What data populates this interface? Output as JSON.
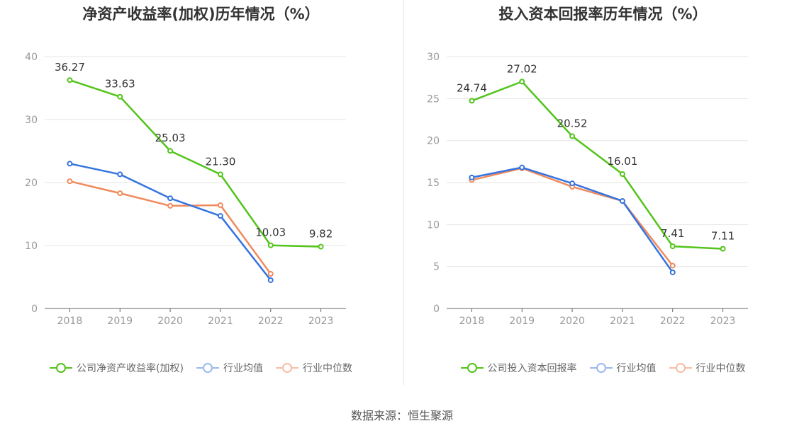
{
  "chart_data": [
    {
      "type": "line",
      "title": "净资产收益率(加权)历年情况（%）",
      "categories": [
        "2018",
        "2019",
        "2020",
        "2021",
        "2022",
        "2023"
      ],
      "ylim": [
        0,
        40
      ],
      "yticks": [
        "0",
        "10",
        "20",
        "30",
        "40"
      ],
      "grid": true,
      "legend_position": "bottom",
      "series": [
        {
          "name": "公司净资产收益率(加权)",
          "color": "#52c41a",
          "values": [
            36.27,
            33.63,
            25.03,
            21.3,
            10.03,
            9.82
          ],
          "labels": [
            "36.27",
            "33.63",
            "25.03",
            "21.30",
            "10.03",
            "9.82"
          ]
        },
        {
          "name": "行业均值",
          "color": "#3574e0",
          "values": [
            23.0,
            21.3,
            17.5,
            14.7,
            4.5,
            null
          ]
        },
        {
          "name": "行业中位数",
          "color": "#f08a5d",
          "values": [
            20.2,
            18.3,
            16.3,
            16.4,
            5.5,
            null
          ]
        }
      ]
    },
    {
      "type": "line",
      "title": "投入资本回报率历年情况（%）",
      "categories": [
        "2018",
        "2019",
        "2020",
        "2021",
        "2022",
        "2023"
      ],
      "ylim": [
        0,
        30
      ],
      "yticks": [
        "0",
        "5",
        "10",
        "15",
        "20",
        "25",
        "30"
      ],
      "grid": true,
      "legend_position": "bottom",
      "series": [
        {
          "name": "公司投入资本回报率",
          "color": "#52c41a",
          "values": [
            24.74,
            27.02,
            20.52,
            16.01,
            7.41,
            7.11
          ],
          "labels": [
            "24.74",
            "27.02",
            "20.52",
            "16.01",
            "7.41",
            "7.11"
          ]
        },
        {
          "name": "行业均值",
          "color": "#3574e0",
          "values": [
            15.6,
            16.8,
            14.9,
            12.8,
            4.3,
            null
          ]
        },
        {
          "name": "行业中位数",
          "color": "#f08a5d",
          "values": [
            15.3,
            16.7,
            14.5,
            12.8,
            5.1,
            null
          ]
        }
      ]
    }
  ],
  "footer": {
    "source": "数据来源：恒生聚源"
  }
}
